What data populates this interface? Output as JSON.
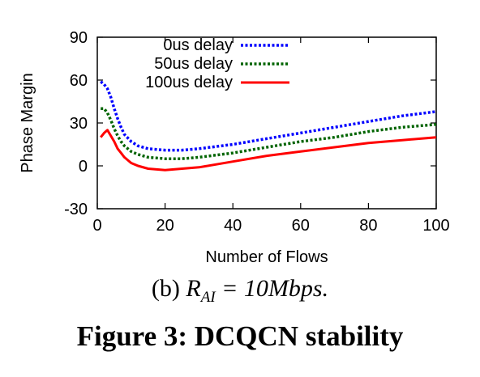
{
  "chart_data": {
    "type": "line",
    "xlabel": "Number of Flows",
    "ylabel": "Phase Margin",
    "xlim": [
      0,
      100
    ],
    "ylim": [
      -30,
      90
    ],
    "xticks": [
      "0",
      "20",
      "40",
      "60",
      "80",
      "100"
    ],
    "yticks": [
      "90",
      "60",
      "30",
      "0",
      "-30"
    ],
    "legend_position": "top",
    "series": [
      {
        "name": "0us delay",
        "color": "#0000ff",
        "style": "dotted",
        "points": [
          [
            1,
            59
          ],
          [
            2,
            57
          ],
          [
            3,
            54
          ],
          [
            4,
            48
          ],
          [
            5,
            40
          ],
          [
            6,
            33
          ],
          [
            7,
            27
          ],
          [
            8,
            22
          ],
          [
            10,
            17
          ],
          [
            12,
            14
          ],
          [
            15,
            12
          ],
          [
            20,
            11
          ],
          [
            25,
            11
          ],
          [
            30,
            12
          ],
          [
            40,
            15
          ],
          [
            50,
            19
          ],
          [
            60,
            23
          ],
          [
            70,
            27
          ],
          [
            80,
            31
          ],
          [
            90,
            35
          ],
          [
            100,
            38
          ]
        ]
      },
      {
        "name": "50us delay",
        "color": "#006400",
        "style": "dotted",
        "points": [
          [
            1,
            40
          ],
          [
            2,
            40
          ],
          [
            3,
            37
          ],
          [
            4,
            32
          ],
          [
            5,
            26
          ],
          [
            6,
            21
          ],
          [
            7,
            17
          ],
          [
            8,
            14
          ],
          [
            10,
            10
          ],
          [
            12,
            8
          ],
          [
            15,
            6
          ],
          [
            20,
            5
          ],
          [
            25,
            5
          ],
          [
            30,
            6
          ],
          [
            40,
            9
          ],
          [
            50,
            13
          ],
          [
            60,
            17
          ],
          [
            70,
            20
          ],
          [
            80,
            24
          ],
          [
            90,
            27
          ],
          [
            100,
            29
          ]
        ]
      },
      {
        "name": "100us delay",
        "color": "#ff0000",
        "style": "solid",
        "points": [
          [
            1,
            20
          ],
          [
            2,
            23
          ],
          [
            3,
            25
          ],
          [
            4,
            21
          ],
          [
            5,
            17
          ],
          [
            6,
            12
          ],
          [
            7,
            9
          ],
          [
            8,
            6
          ],
          [
            10,
            2
          ],
          [
            12,
            0
          ],
          [
            15,
            -2
          ],
          [
            20,
            -3
          ],
          [
            25,
            -2
          ],
          [
            30,
            -1
          ],
          [
            40,
            3
          ],
          [
            50,
            7
          ],
          [
            60,
            10
          ],
          [
            70,
            13
          ],
          [
            80,
            16
          ],
          [
            90,
            18
          ],
          [
            100,
            20
          ]
        ]
      }
    ]
  },
  "caption": {
    "subfig_prefix": "(b) ",
    "math_main": "R",
    "math_sub": "AI",
    "math_rest": " = 10Mbps.",
    "figure": "Figure 3: DCQCN stability"
  }
}
